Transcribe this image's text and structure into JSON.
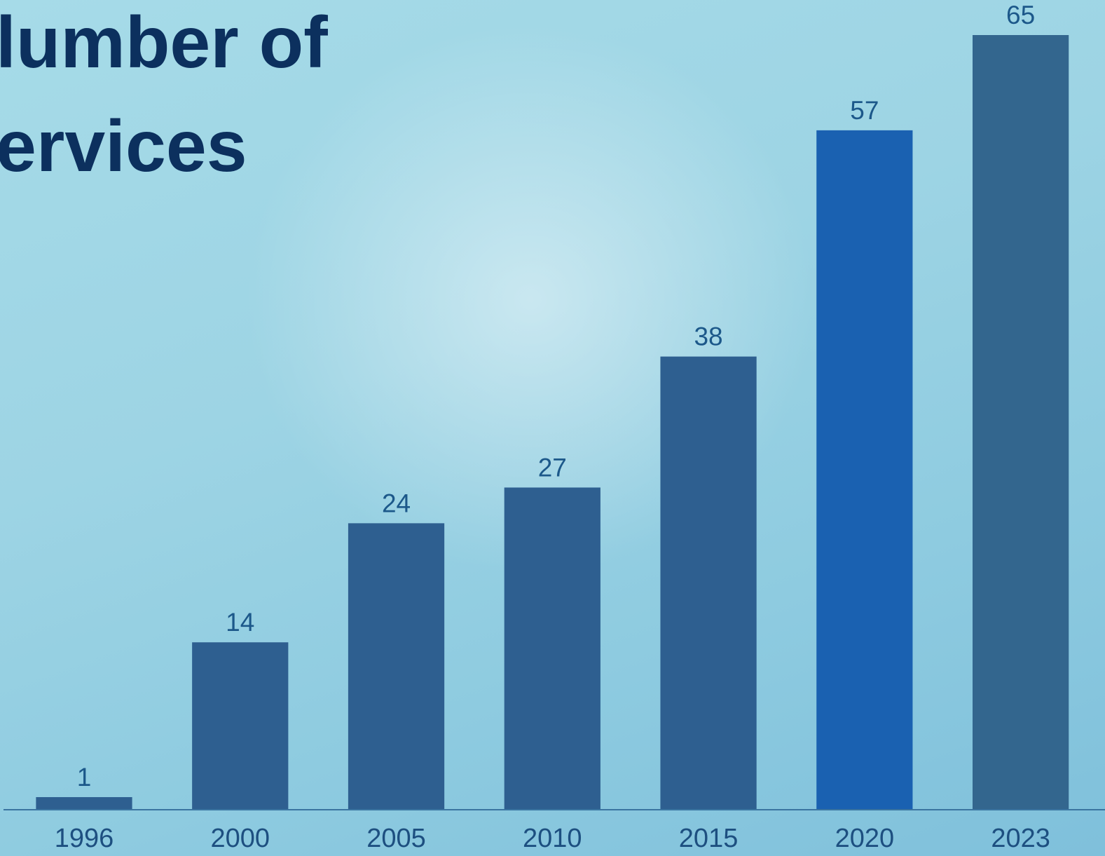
{
  "chart_data": {
    "type": "bar",
    "title_lines": [
      "lumber of",
      "ervices"
    ],
    "categories": [
      "1996",
      "2000",
      "2005",
      "2010",
      "2015",
      "2020",
      "2023"
    ],
    "values": [
      1,
      14,
      24,
      27,
      38,
      57,
      65
    ],
    "colors": [
      "#2e5f90",
      "#2e5f90",
      "#2e5f90",
      "#2e5f90",
      "#2e5f90",
      "#1a61b1",
      "#33668e"
    ],
    "ylim": [
      0,
      65
    ]
  }
}
